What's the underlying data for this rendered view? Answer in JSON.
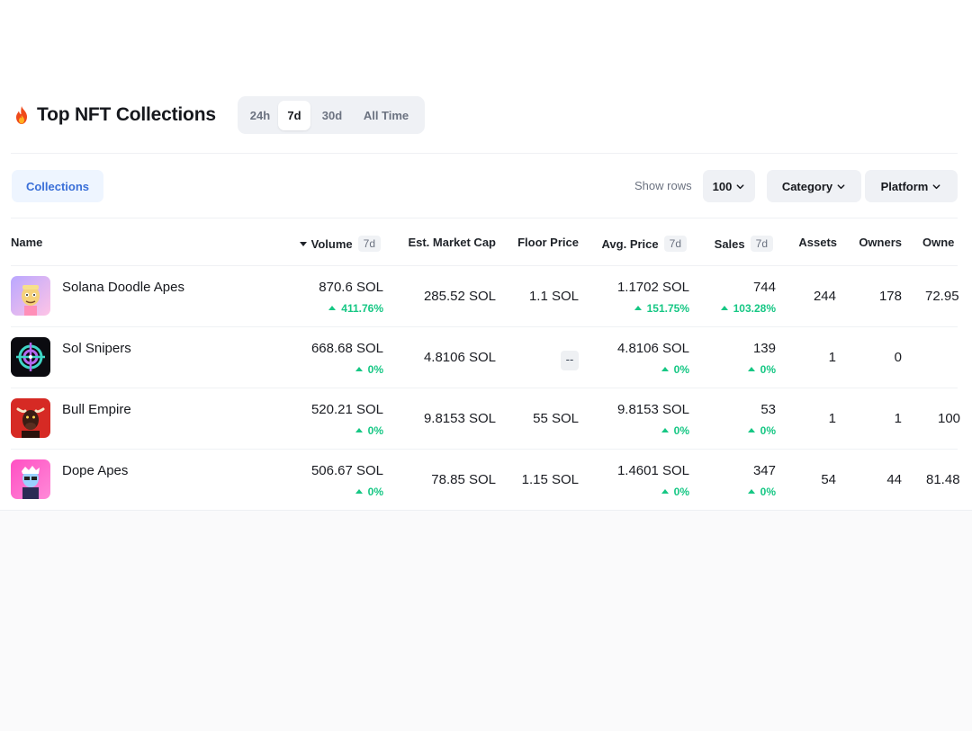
{
  "header": {
    "title": "Top NFT Collections",
    "icon": "fire-icon",
    "timeframes": [
      "24h",
      "7d",
      "30d",
      "All Time"
    ],
    "active_timeframe": "7d"
  },
  "toolbar": {
    "collections_tab": "Collections",
    "show_rows_label": "Show rows",
    "rows_value": "100",
    "category_label": "Category",
    "platform_label": "Platform"
  },
  "table": {
    "columns": {
      "name": "Name",
      "volume": "Volume",
      "volume_tag": "7d",
      "market_cap": "Est. Market Cap",
      "floor": "Floor Price",
      "avg_price": "Avg. Price",
      "avg_price_tag": "7d",
      "sales": "Sales",
      "sales_tag": "7d",
      "assets": "Assets",
      "owners": "Owners",
      "owners_pct": "Owne"
    },
    "rows": [
      {
        "name": "Solana Doodle Apes",
        "volume": "870.6 SOL",
        "volume_change": "411.76%",
        "market_cap": "285.52 SOL",
        "floor": "1.1 SOL",
        "avg_price": "1.1702 SOL",
        "avg_change": "151.75%",
        "sales": "744",
        "sales_change": "103.28%",
        "assets": "244",
        "owners": "178",
        "owners_pct": "72.95"
      },
      {
        "name": "Sol Snipers",
        "volume": "668.68 SOL",
        "volume_change": "0%",
        "market_cap": "4.8106 SOL",
        "floor": "--",
        "avg_price": "4.8106 SOL",
        "avg_change": "0%",
        "sales": "139",
        "sales_change": "0%",
        "assets": "1",
        "owners": "0",
        "owners_pct": ""
      },
      {
        "name": "Bull Empire",
        "volume": "520.21 SOL",
        "volume_change": "0%",
        "market_cap": "9.8153 SOL",
        "floor": "55 SOL",
        "avg_price": "9.8153 SOL",
        "avg_change": "0%",
        "sales": "53",
        "sales_change": "0%",
        "assets": "1",
        "owners": "1",
        "owners_pct": "100"
      },
      {
        "name": "Dope Apes",
        "volume": "506.67 SOL",
        "volume_change": "0%",
        "market_cap": "78.85 SOL",
        "floor": "1.15 SOL",
        "avg_price": "1.4601 SOL",
        "avg_change": "0%",
        "sales": "347",
        "sales_change": "0%",
        "assets": "54",
        "owners": "44",
        "owners_pct": "81.48"
      }
    ]
  },
  "colors": {
    "accent_blue": "#3a6fd8",
    "positive_green": "#16c784"
  }
}
